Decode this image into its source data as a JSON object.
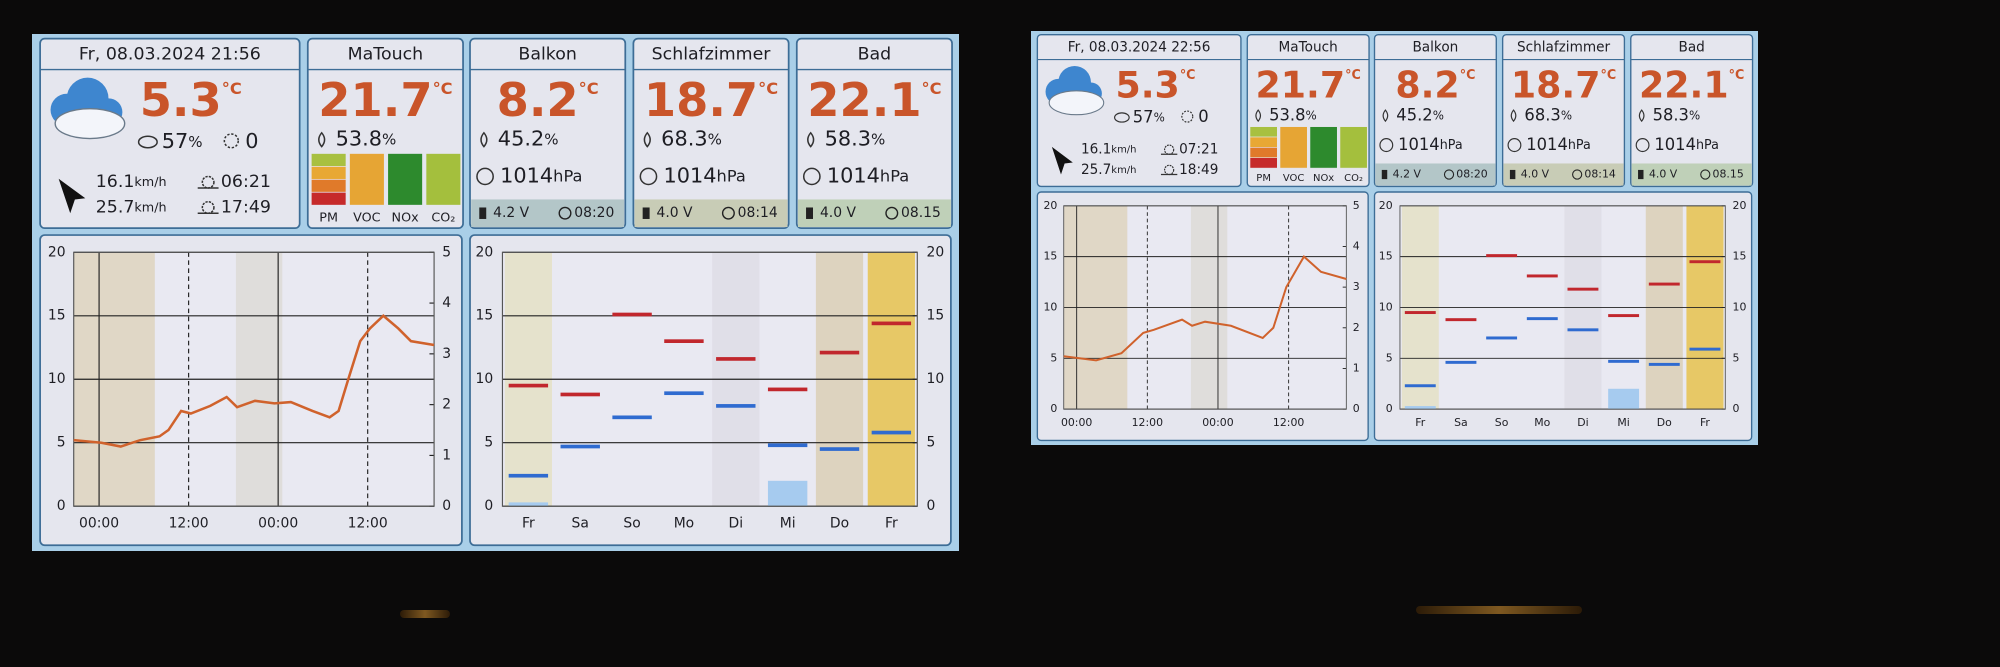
{
  "units": {
    "temp": "°C",
    "hum": "%",
    "press": "hPa",
    "speed": "km/h"
  },
  "screens": [
    {
      "datetime": "Fr, 08.03.2024  21:56",
      "weather": {
        "temp": "5.3",
        "humidity": "57",
        "uv": "0",
        "wind": "16.1",
        "gust": "25.7",
        "sunrise": "06:21",
        "sunset": "17:49"
      },
      "matouch": {
        "name": "MaTouch",
        "temp": "21.7",
        "humidity": "53.8",
        "aq_labels": [
          "PM",
          "VOC",
          "NOx",
          "CO₂"
        ]
      },
      "sensors": [
        {
          "name": "Balkon",
          "temp": "8.2",
          "humidity": "45.2",
          "pressure": "1014",
          "battery": "4.2 V",
          "time": "08:20"
        },
        {
          "name": "Schlafzimmer",
          "temp": "18.7",
          "humidity": "68.3",
          "pressure": "1014",
          "battery": "4.0 V",
          "time": "08:14"
        },
        {
          "name": "Bad",
          "temp": "22.1",
          "humidity": "58.3",
          "pressure": "1014",
          "battery": "4.0 V",
          "time": "08.15"
        }
      ],
      "temp_chart": {
        "type": "line",
        "color": "#d0622c",
        "x": [
          -3.4,
          0.3,
          2.9,
          5.5,
          8.1,
          9.3,
          11.0,
          12.3,
          14.9,
          17.1,
          18.5,
          20.9,
          23.5,
          25.7,
          28.6,
          30.9,
          32.1,
          33.4,
          35.0,
          36.3,
          38.1,
          40.1,
          41.8,
          44.9
        ],
        "values": [
          5.2,
          5.0,
          4.7,
          5.2,
          5.5,
          6.0,
          7.5,
          7.3,
          7.9,
          8.6,
          7.8,
          8.3,
          8.1,
          8.2,
          7.5,
          7.0,
          7.5,
          10.0,
          13.0,
          14.0,
          15.0,
          14.0,
          13.0,
          12.7
        ],
        "xlim": [
          -3.4,
          44.9
        ],
        "xticks": [
          {
            "value": 0,
            "label": "00:00"
          },
          {
            "value": 12,
            "label": "12:00"
          },
          {
            "value": 24,
            "label": "00:00"
          },
          {
            "value": 36,
            "label": "12:00"
          }
        ],
        "ylim": [
          0,
          20
        ],
        "yticks": [
          0,
          5,
          10,
          15,
          20
        ],
        "y2lim": [
          0,
          5
        ],
        "y2ticks": [
          0,
          1,
          2,
          3,
          4,
          5
        ],
        "grid": true
      },
      "forecast_chart": {
        "type": "range",
        "categories": [
          "Fr",
          "Sa",
          "So",
          "Mo",
          "Di",
          "Mi",
          "Do",
          "Fr"
        ],
        "series": [
          {
            "color": "#c1272d",
            "marker": "dash",
            "values": [
              9.5,
              8.8,
              15.1,
              13.0,
              11.6,
              9.2,
              12.1,
              14.4
            ]
          },
          {
            "color": "#2f6bd0",
            "marker": "dash",
            "values": [
              2.4,
              4.7,
              7.0,
              8.9,
              7.9,
              4.8,
              4.5,
              5.8
            ]
          },
          {
            "color": "#a6cbef",
            "marker": "bar",
            "values": [
              0.3,
              0,
              0,
              0,
              0,
              2.0,
              0,
              0
            ]
          }
        ],
        "ylim": [
          0,
          20
        ],
        "yticks": [
          0,
          5,
          10,
          15,
          20
        ],
        "y2lim": [
          0,
          20
        ],
        "y2ticks": [
          0,
          5,
          10,
          15,
          20
        ],
        "grid": true
      }
    },
    {
      "datetime": "Fr, 08.03.2024  22:56",
      "weather": {
        "temp": "5.3",
        "humidity": "57",
        "uv": "0",
        "wind": "16.1",
        "gust": "25.7",
        "sunrise": "07:21",
        "sunset": "18:49"
      },
      "matouch": {
        "name": "MaTouch",
        "temp": "21.7",
        "humidity": "53.8",
        "aq_labels": [
          "PM",
          "VOC",
          "NOx",
          "CO₂"
        ]
      },
      "sensors": [
        {
          "name": "Balkon",
          "temp": "8.2",
          "humidity": "45.2",
          "pressure": "1014",
          "battery": "4.2 V",
          "time": "08:20"
        },
        {
          "name": "Schlafzimmer",
          "temp": "18.7",
          "humidity": "68.3",
          "pressure": "1014",
          "battery": "4.0 V",
          "time": "08:14"
        },
        {
          "name": "Bad",
          "temp": "22.1",
          "humidity": "58.3",
          "pressure": "1014",
          "battery": "4.0 V",
          "time": "08.15"
        }
      ],
      "temp_chart": {
        "type": "line",
        "color": "#d0622c",
        "x": [
          -2.2,
          3.3,
          7.6,
          11.3,
          13.1,
          17.9,
          19.6,
          21.8,
          26.2,
          31.6,
          33.4,
          35.6,
          38.6,
          41.5,
          45.8
        ],
        "values": [
          5.2,
          4.8,
          5.5,
          7.5,
          7.8,
          8.8,
          8.2,
          8.6,
          8.2,
          7.0,
          8.0,
          12.0,
          15.0,
          13.5,
          12.8
        ],
        "xlim": [
          -2.2,
          45.8
        ],
        "xticks": [
          {
            "value": 0,
            "label": "00:00"
          },
          {
            "value": 12,
            "label": "12:00"
          },
          {
            "value": 24,
            "label": "00:00"
          },
          {
            "value": 36,
            "label": "12:00"
          }
        ],
        "ylim": [
          0,
          20
        ],
        "yticks": [
          0,
          5,
          10,
          15,
          20
        ],
        "y2lim": [
          0,
          5
        ],
        "y2ticks": [
          0,
          1,
          2,
          3,
          4,
          5
        ],
        "grid": true
      },
      "forecast_chart": {
        "type": "range",
        "categories": [
          "Fr",
          "Sa",
          "So",
          "Mo",
          "Di",
          "Mi",
          "Do",
          "Fr"
        ],
        "series": [
          {
            "color": "#c1272d",
            "marker": "dash",
            "values": [
              9.5,
              8.8,
              15.1,
              13.1,
              11.8,
              9.2,
              12.3,
              14.5
            ]
          },
          {
            "color": "#2f6bd0",
            "marker": "dash",
            "values": [
              2.3,
              4.6,
              7.0,
              8.9,
              7.8,
              4.7,
              4.4,
              5.9
            ]
          },
          {
            "color": "#a6cbef",
            "marker": "bar",
            "values": [
              0.3,
              0,
              0,
              0,
              0,
              2.0,
              0,
              0
            ]
          }
        ],
        "ylim": [
          0,
          20
        ],
        "yticks": [
          0,
          5,
          10,
          15,
          20
        ],
        "y2lim": [
          0,
          20
        ],
        "y2ticks": [
          0,
          5,
          10,
          15,
          20
        ],
        "grid": true
      }
    }
  ]
}
